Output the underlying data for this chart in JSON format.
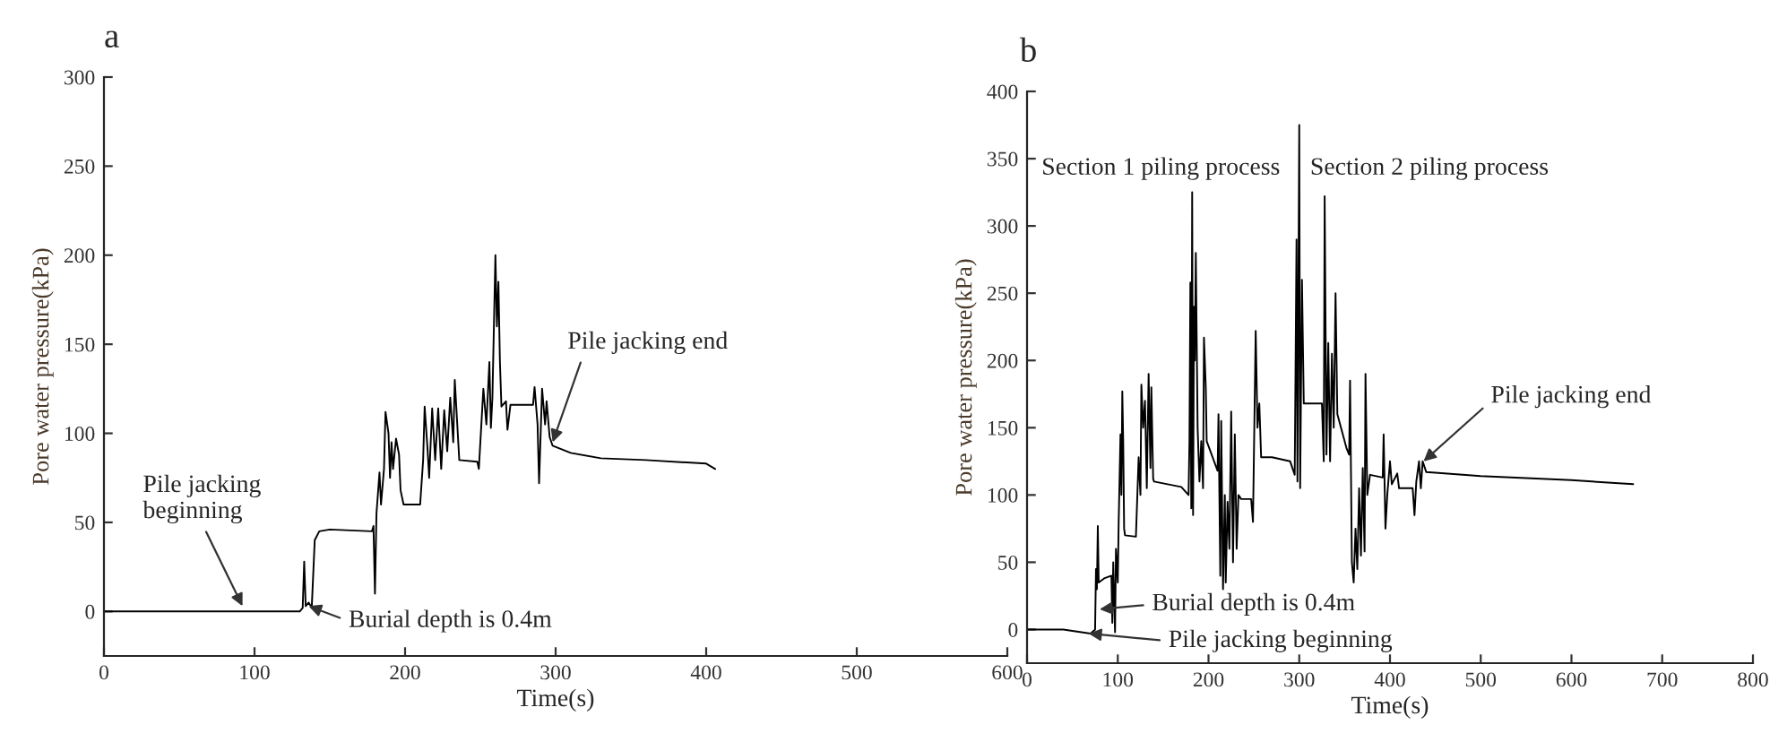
{
  "chart_data": [
    {
      "type": "line",
      "title": "a",
      "xlabel": "Time(s)",
      "ylabel": "Pore water pressure(kPa)",
      "series": [
        {
          "color": "#000000",
          "x": [
            0,
            130,
            132,
            133,
            134,
            136,
            138,
            140,
            143,
            150,
            178,
            179,
            180,
            181,
            183,
            184,
            186,
            187,
            189,
            190,
            191,
            192,
            194,
            196,
            197,
            199,
            210,
            212,
            213,
            215,
            216,
            218,
            220,
            222,
            224,
            226,
            228,
            230,
            232,
            233,
            235,
            236,
            248,
            249,
            251,
            252,
            254,
            256,
            257,
            258,
            260,
            261,
            262,
            263,
            264,
            267,
            268,
            270,
            285,
            286,
            288,
            289,
            291,
            293,
            294,
            296,
            298,
            310,
            330,
            360,
            400,
            406
          ],
          "values": [
            0,
            0,
            2,
            28,
            3,
            5,
            2,
            40,
            45,
            46,
            45,
            48,
            10,
            55,
            78,
            60,
            80,
            112,
            100,
            75,
            95,
            80,
            97,
            88,
            68,
            60,
            60,
            85,
            115,
            90,
            75,
            114,
            85,
            114,
            80,
            113,
            90,
            120,
            95,
            130,
            100,
            85,
            84,
            80,
            110,
            125,
            105,
            140,
            103,
            120,
            200,
            160,
            185,
            140,
            115,
            118,
            102,
            116,
            116,
            126,
            105,
            72,
            125,
            105,
            118,
            98,
            93,
            89,
            86,
            85,
            83,
            80
          ]
        }
      ],
      "xlim": [
        0,
        600
      ],
      "xticks": [
        0,
        100,
        200,
        300,
        400,
        500,
        600
      ],
      "ylim": [
        -25,
        300
      ],
      "yticks": [
        0,
        50,
        100,
        150,
        200,
        250,
        300
      ],
      "grid": false,
      "legend": false,
      "marker": "none",
      "line_style": "solid",
      "annotations": [
        {
          "text": "Pile jacking\nbeginning",
          "x": 92,
          "y": 3
        },
        {
          "text": "Burial depth is 0.4m",
          "x": 136,
          "y": 3
        },
        {
          "text": "Pile jacking end",
          "x": 298,
          "y": 95
        }
      ]
    },
    {
      "type": "line",
      "title": "b",
      "xlabel": "Time(s)",
      "ylabel": "Pore water pressure(kPa)",
      "series": [
        {
          "color": "#000000",
          "x": [
            0,
            40,
            70,
            75,
            76,
            77,
            78,
            79,
            85,
            93,
            94,
            95,
            97,
            98,
            100,
            101,
            103,
            104,
            105,
            106,
            107,
            108,
            120,
            123,
            125,
            126,
            128,
            130,
            132,
            134,
            136,
            137,
            139,
            140,
            170,
            178,
            179,
            180,
            181,
            182,
            183,
            184,
            185,
            186,
            188,
            190,
            192,
            194,
            195,
            197,
            198,
            210,
            211,
            213,
            214,
            216,
            218,
            219,
            221,
            223,
            225,
            227,
            229,
            231,
            233,
            236,
            247,
            249,
            252,
            254,
            256,
            258,
            270,
            290,
            295,
            297,
            298,
            300,
            301,
            303,
            305,
            325,
            327,
            328,
            330,
            332,
            334,
            336,
            338,
            340,
            342,
            346,
            352,
            355,
            356,
            358,
            360,
            362,
            364,
            366,
            368,
            370,
            372,
            373,
            375,
            378,
            392,
            393,
            395,
            397,
            400,
            402,
            408,
            410,
            425,
            427,
            429,
            432,
            434,
            436,
            440,
            500,
            600,
            668
          ],
          "values": [
            0,
            0,
            -3,
            0,
            45,
            30,
            77,
            35,
            38,
            40,
            5,
            50,
            -2,
            60,
            35,
            80,
            145,
            100,
            177,
            140,
            75,
            70,
            69,
            128,
            100,
            182,
            150,
            170,
            105,
            190,
            120,
            180,
            112,
            110,
            106,
            100,
            140,
            258,
            90,
            325,
            85,
            240,
            200,
            280,
            150,
            110,
            140,
            105,
            217,
            180,
            140,
            118,
            160,
            40,
            155,
            30,
            100,
            35,
            95,
            60,
            162,
            50,
            145,
            60,
            100,
            97,
            97,
            80,
            222,
            150,
            168,
            128,
            128,
            125,
            115,
            290,
            110,
            375,
            105,
            260,
            168,
            168,
            125,
            322,
            130,
            213,
            125,
            205,
            150,
            250,
            160,
            150,
            135,
            130,
            185,
            50,
            35,
            75,
            45,
            105,
            55,
            120,
            58,
            190,
            100,
            115,
            113,
            145,
            75,
            100,
            125,
            108,
            116,
            105,
            105,
            85,
            110,
            125,
            105,
            125,
            117,
            114,
            111,
            108
          ]
        }
      ],
      "xlim": [
        0,
        800
      ],
      "xticks": [
        0,
        100,
        200,
        300,
        400,
        500,
        600,
        700,
        800
      ],
      "ylim": [
        -25,
        400
      ],
      "yticks": [
        0,
        50,
        100,
        150,
        200,
        250,
        300,
        350,
        400
      ],
      "grid": false,
      "legend": false,
      "marker": "none",
      "line_style": "solid",
      "annotations": [
        "Section 1 piling process",
        "Section 2 piling process",
        {
          "text": "Burial depth is 0.4m",
          "x": 80,
          "y": 15
        },
        {
          "text": "Pile jacking beginning",
          "x": 68,
          "y": -3
        },
        {
          "text": "Pile jacking end",
          "x": 437,
          "y": 125
        }
      ]
    }
  ]
}
